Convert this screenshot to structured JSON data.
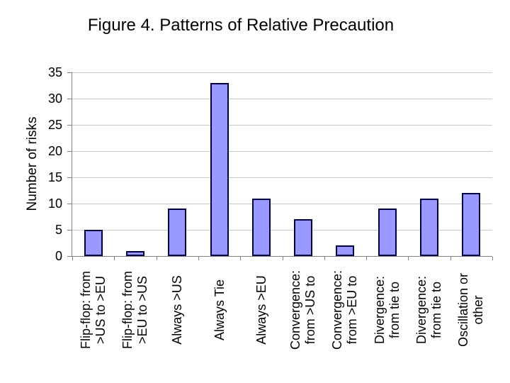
{
  "chart_data": {
    "type": "bar",
    "title": "Figure 4. Patterns of Relative Precaution",
    "xlabel": "",
    "ylabel": "Number of risks",
    "ylim": [
      0,
      35
    ],
    "yticks": [
      0,
      5,
      10,
      15,
      20,
      25,
      30,
      35
    ],
    "grid": true,
    "legend": false,
    "categories": [
      "Flip-flop: from >US to >EU",
      "Flip-flop: from >EU to >US",
      "Always >US",
      "Always Tie",
      "Always >EU",
      "Convergence: from >US to",
      "Convergence: from >EU to",
      "Divergence: from tie to",
      "Divergence: from tie to",
      "Oscillation or other"
    ],
    "category_lines": [
      [
        "Flip-flop: from",
        ">US to >EU"
      ],
      [
        "Flip-flop: from",
        ">EU to >US"
      ],
      [
        "Always >US"
      ],
      [
        "Always Tie"
      ],
      [
        "Always >EU"
      ],
      [
        "Convergence:",
        "from >US to"
      ],
      [
        "Convergence:",
        "from >EU to"
      ],
      [
        "Divergence:",
        "from tie to"
      ],
      [
        "Divergence:",
        "from tie to"
      ],
      [
        "Oscillation or",
        "other"
      ]
    ],
    "values": [
      5,
      1,
      9,
      33,
      11,
      7,
      2,
      9,
      11,
      12
    ],
    "colors": {
      "bar_fill": "#9999FF",
      "bar_border": "#000040",
      "gridline": "#C9C9C9",
      "axis": "#808080",
      "text": "#000000",
      "background": "#FFFFFF"
    }
  }
}
